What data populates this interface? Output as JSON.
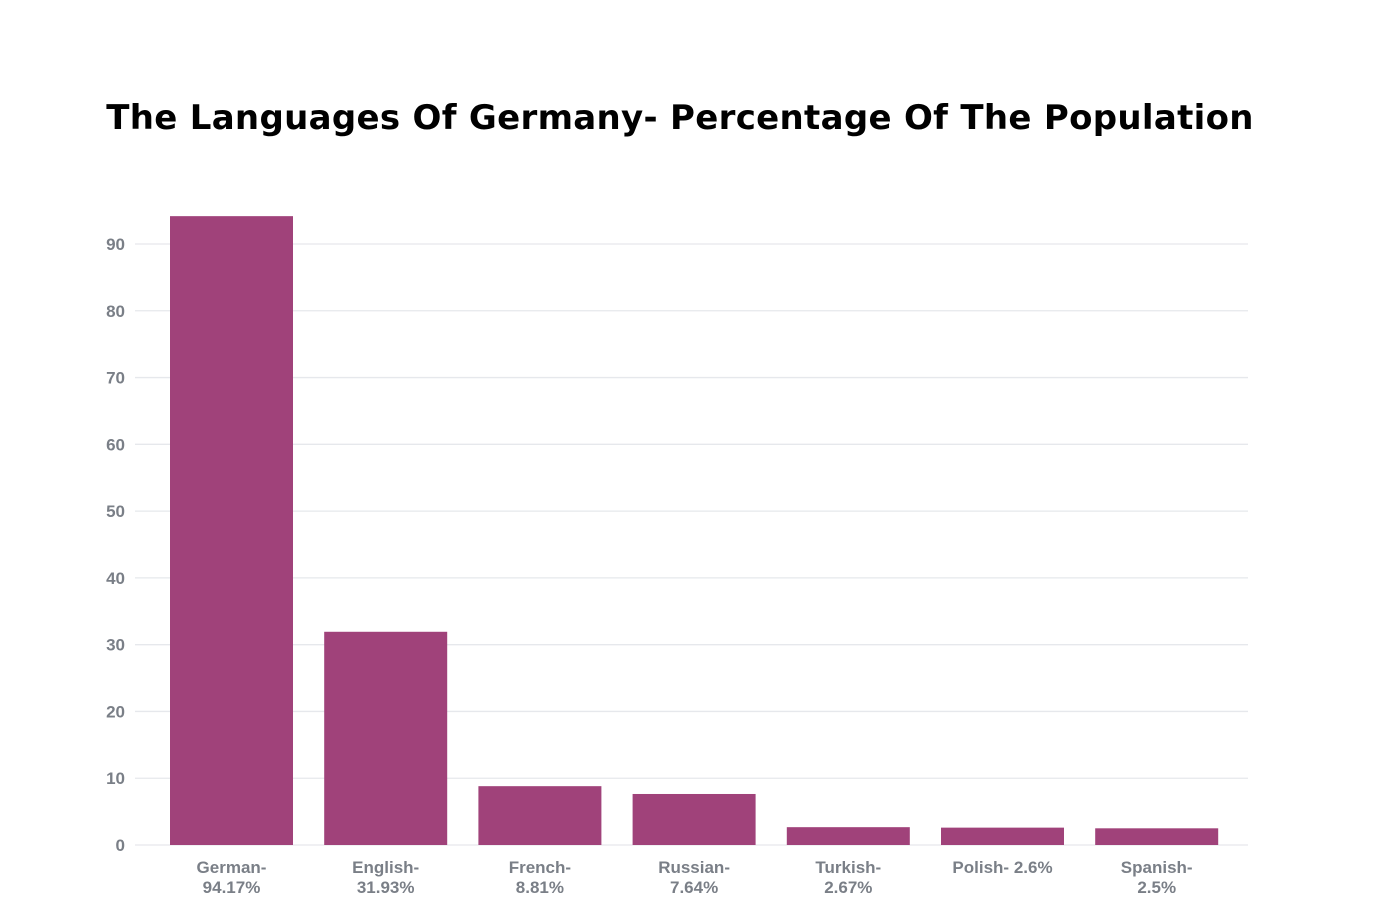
{
  "chart_data": {
    "type": "bar",
    "title": "The Languages Of Germany- Percentage Of The Population",
    "categories": [
      "German-\n94.17%",
      "English-\n31.93%",
      "French-\n8.81%",
      "Russian-\n7.64%",
      "Turkish-\n2.67%",
      "Polish- 2.6%",
      "Spanish-\n2.5%"
    ],
    "values": [
      94.17,
      31.93,
      8.81,
      7.64,
      2.67,
      2.6,
      2.5
    ],
    "xlabel": "",
    "ylabel": "",
    "ylim": [
      0,
      90
    ],
    "yticks": [
      0,
      10,
      20,
      30,
      40,
      50,
      60,
      70,
      80,
      90
    ],
    "grid": true,
    "legend": "none",
    "colors": {
      "bar": "#a0427a",
      "grid": "#e6e8ec",
      "tick_text": "#7a7f87"
    }
  }
}
